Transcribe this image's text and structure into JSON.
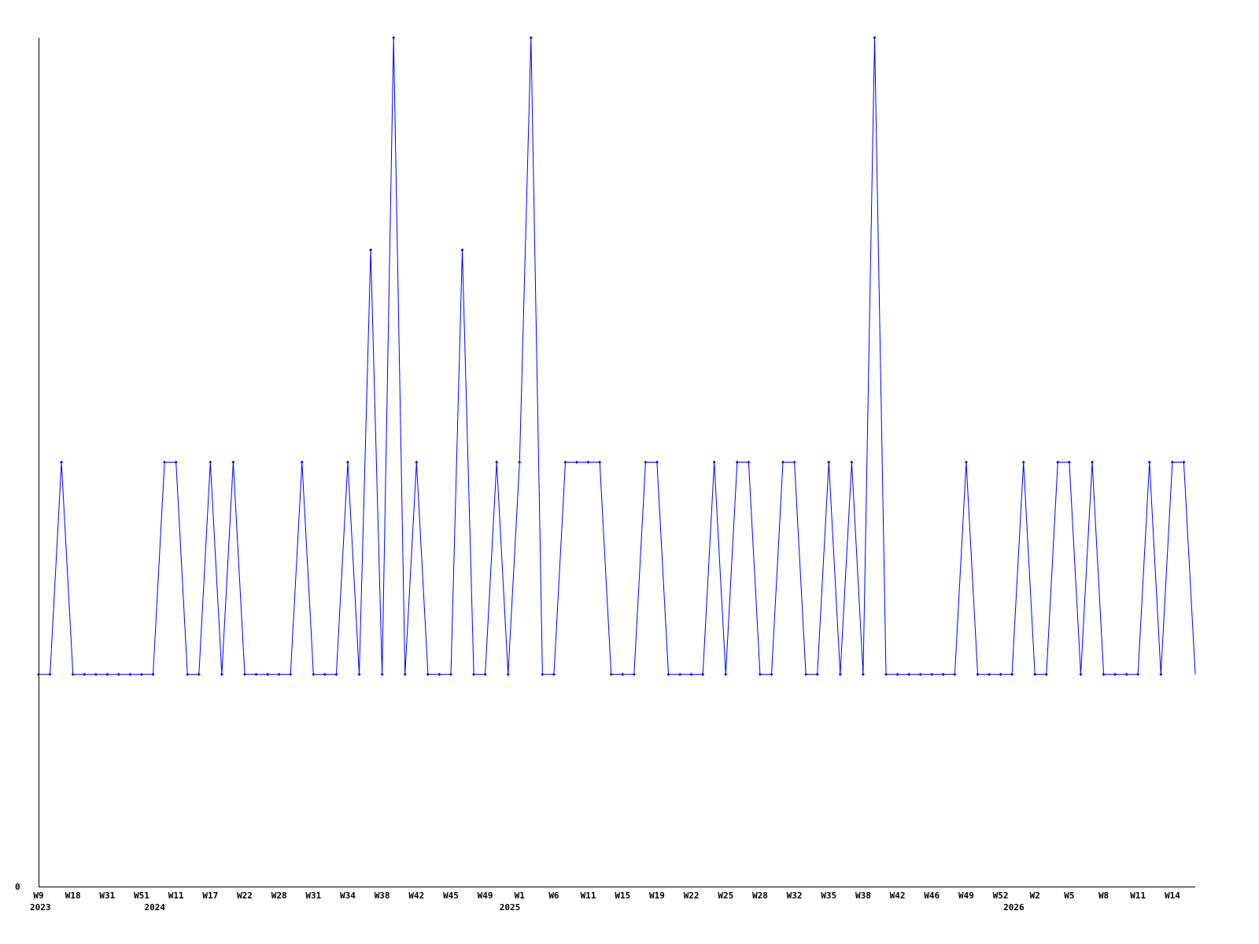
{
  "chart_data": {
    "type": "line",
    "title": "",
    "xlabel": "",
    "ylabel": "",
    "ylim": [
      0,
      4
    ],
    "yticks": [
      "0"
    ],
    "grid": false,
    "line_color": "#0000ff",
    "axis_color": "#000000",
    "x_tick_every": 3,
    "x_tick_labels": [
      "W9",
      "W18",
      "W31",
      "W51",
      "W11",
      "W17",
      "W22",
      "W28",
      "W31",
      "W34",
      "W38",
      "W42",
      "W45",
      "W49",
      "W1",
      "W6",
      "W11",
      "W15",
      "W19",
      "W22",
      "W25",
      "W28",
      "W32",
      "W35",
      "W38",
      "W42",
      "W46",
      "W49",
      "W52",
      "W2",
      "W5",
      "W8",
      "W11",
      "W14"
    ],
    "year_labels": [
      {
        "label": "2023",
        "index": 0
      },
      {
        "label": "2024",
        "index": 10
      },
      {
        "label": "2025",
        "index": 41
      },
      {
        "label": "2026",
        "index": 85
      }
    ],
    "values": [
      1,
      1,
      2,
      1,
      1,
      1,
      1,
      1,
      1,
      1,
      1,
      2,
      2,
      1,
      1,
      2,
      1,
      2,
      1,
      1,
      1,
      1,
      1,
      2,
      1,
      1,
      1,
      2,
      1,
      3,
      1,
      4,
      1,
      2,
      1,
      1,
      1,
      3,
      1,
      1,
      2,
      1,
      2,
      4,
      1,
      1,
      2,
      2,
      2,
      2,
      1,
      1,
      1,
      2,
      2,
      1,
      1,
      1,
      1,
      2,
      1,
      2,
      2,
      1,
      1,
      2,
      2,
      1,
      1,
      2,
      1,
      2,
      1,
      4,
      1,
      1,
      1,
      1,
      1,
      1,
      1,
      2,
      1,
      1,
      1,
      1,
      2,
      1,
      1,
      2,
      2,
      1,
      2,
      1,
      1,
      1,
      1,
      2,
      1,
      2,
      2,
      1
    ]
  }
}
